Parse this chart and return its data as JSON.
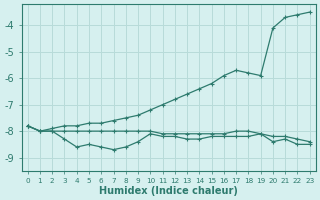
{
  "x": [
    0,
    1,
    2,
    3,
    4,
    5,
    6,
    7,
    8,
    9,
    10,
    11,
    12,
    13,
    14,
    15,
    16,
    17,
    18,
    19,
    20,
    21,
    22,
    23
  ],
  "line1": [
    -7.8,
    -8.0,
    -7.9,
    -7.8,
    -7.8,
    -7.7,
    -7.7,
    -7.6,
    -7.5,
    -7.4,
    -7.2,
    -7.0,
    -6.8,
    -6.6,
    -6.4,
    -6.2,
    -5.9,
    -5.7,
    -5.8,
    -5.9,
    -4.1,
    -3.7,
    -3.6,
    -3.5
  ],
  "line2": [
    -7.8,
    -8.0,
    -8.0,
    -8.0,
    -8.0,
    -8.0,
    -8.0,
    -8.0,
    -8.0,
    -8.0,
    -8.0,
    -8.1,
    -8.1,
    -8.1,
    -8.1,
    -8.1,
    -8.1,
    -8.0,
    -8.0,
    -8.1,
    -8.2,
    -8.2,
    -8.3,
    -8.4
  ],
  "line3": [
    -7.8,
    -8.0,
    -8.0,
    -8.3,
    -8.6,
    -8.5,
    -8.6,
    -8.7,
    -8.6,
    -8.4,
    -8.1,
    -8.2,
    -8.2,
    -8.3,
    -8.3,
    -8.2,
    -8.2,
    -8.2,
    -8.2,
    -8.1,
    -8.4,
    -8.3,
    -8.5,
    -8.5
  ],
  "line_color": "#2e7b6e",
  "bg_color": "#d6f0ef",
  "grid_color": "#b8dbd9",
  "xlabel": "Humidex (Indice chaleur)",
  "ylim": [
    -9.5,
    -3.2
  ],
  "xlim": [
    -0.5,
    23.5
  ],
  "yticks": [
    -9,
    -8,
    -7,
    -6,
    -5,
    -4
  ],
  "xtick_labels": [
    "0",
    "1",
    "2",
    "3",
    "4",
    "5",
    "6",
    "7",
    "8",
    "9",
    "10",
    "11",
    "12",
    "13",
    "14",
    "15",
    "16",
    "17",
    "18",
    "19",
    "20",
    "21",
    "22",
    "23"
  ]
}
